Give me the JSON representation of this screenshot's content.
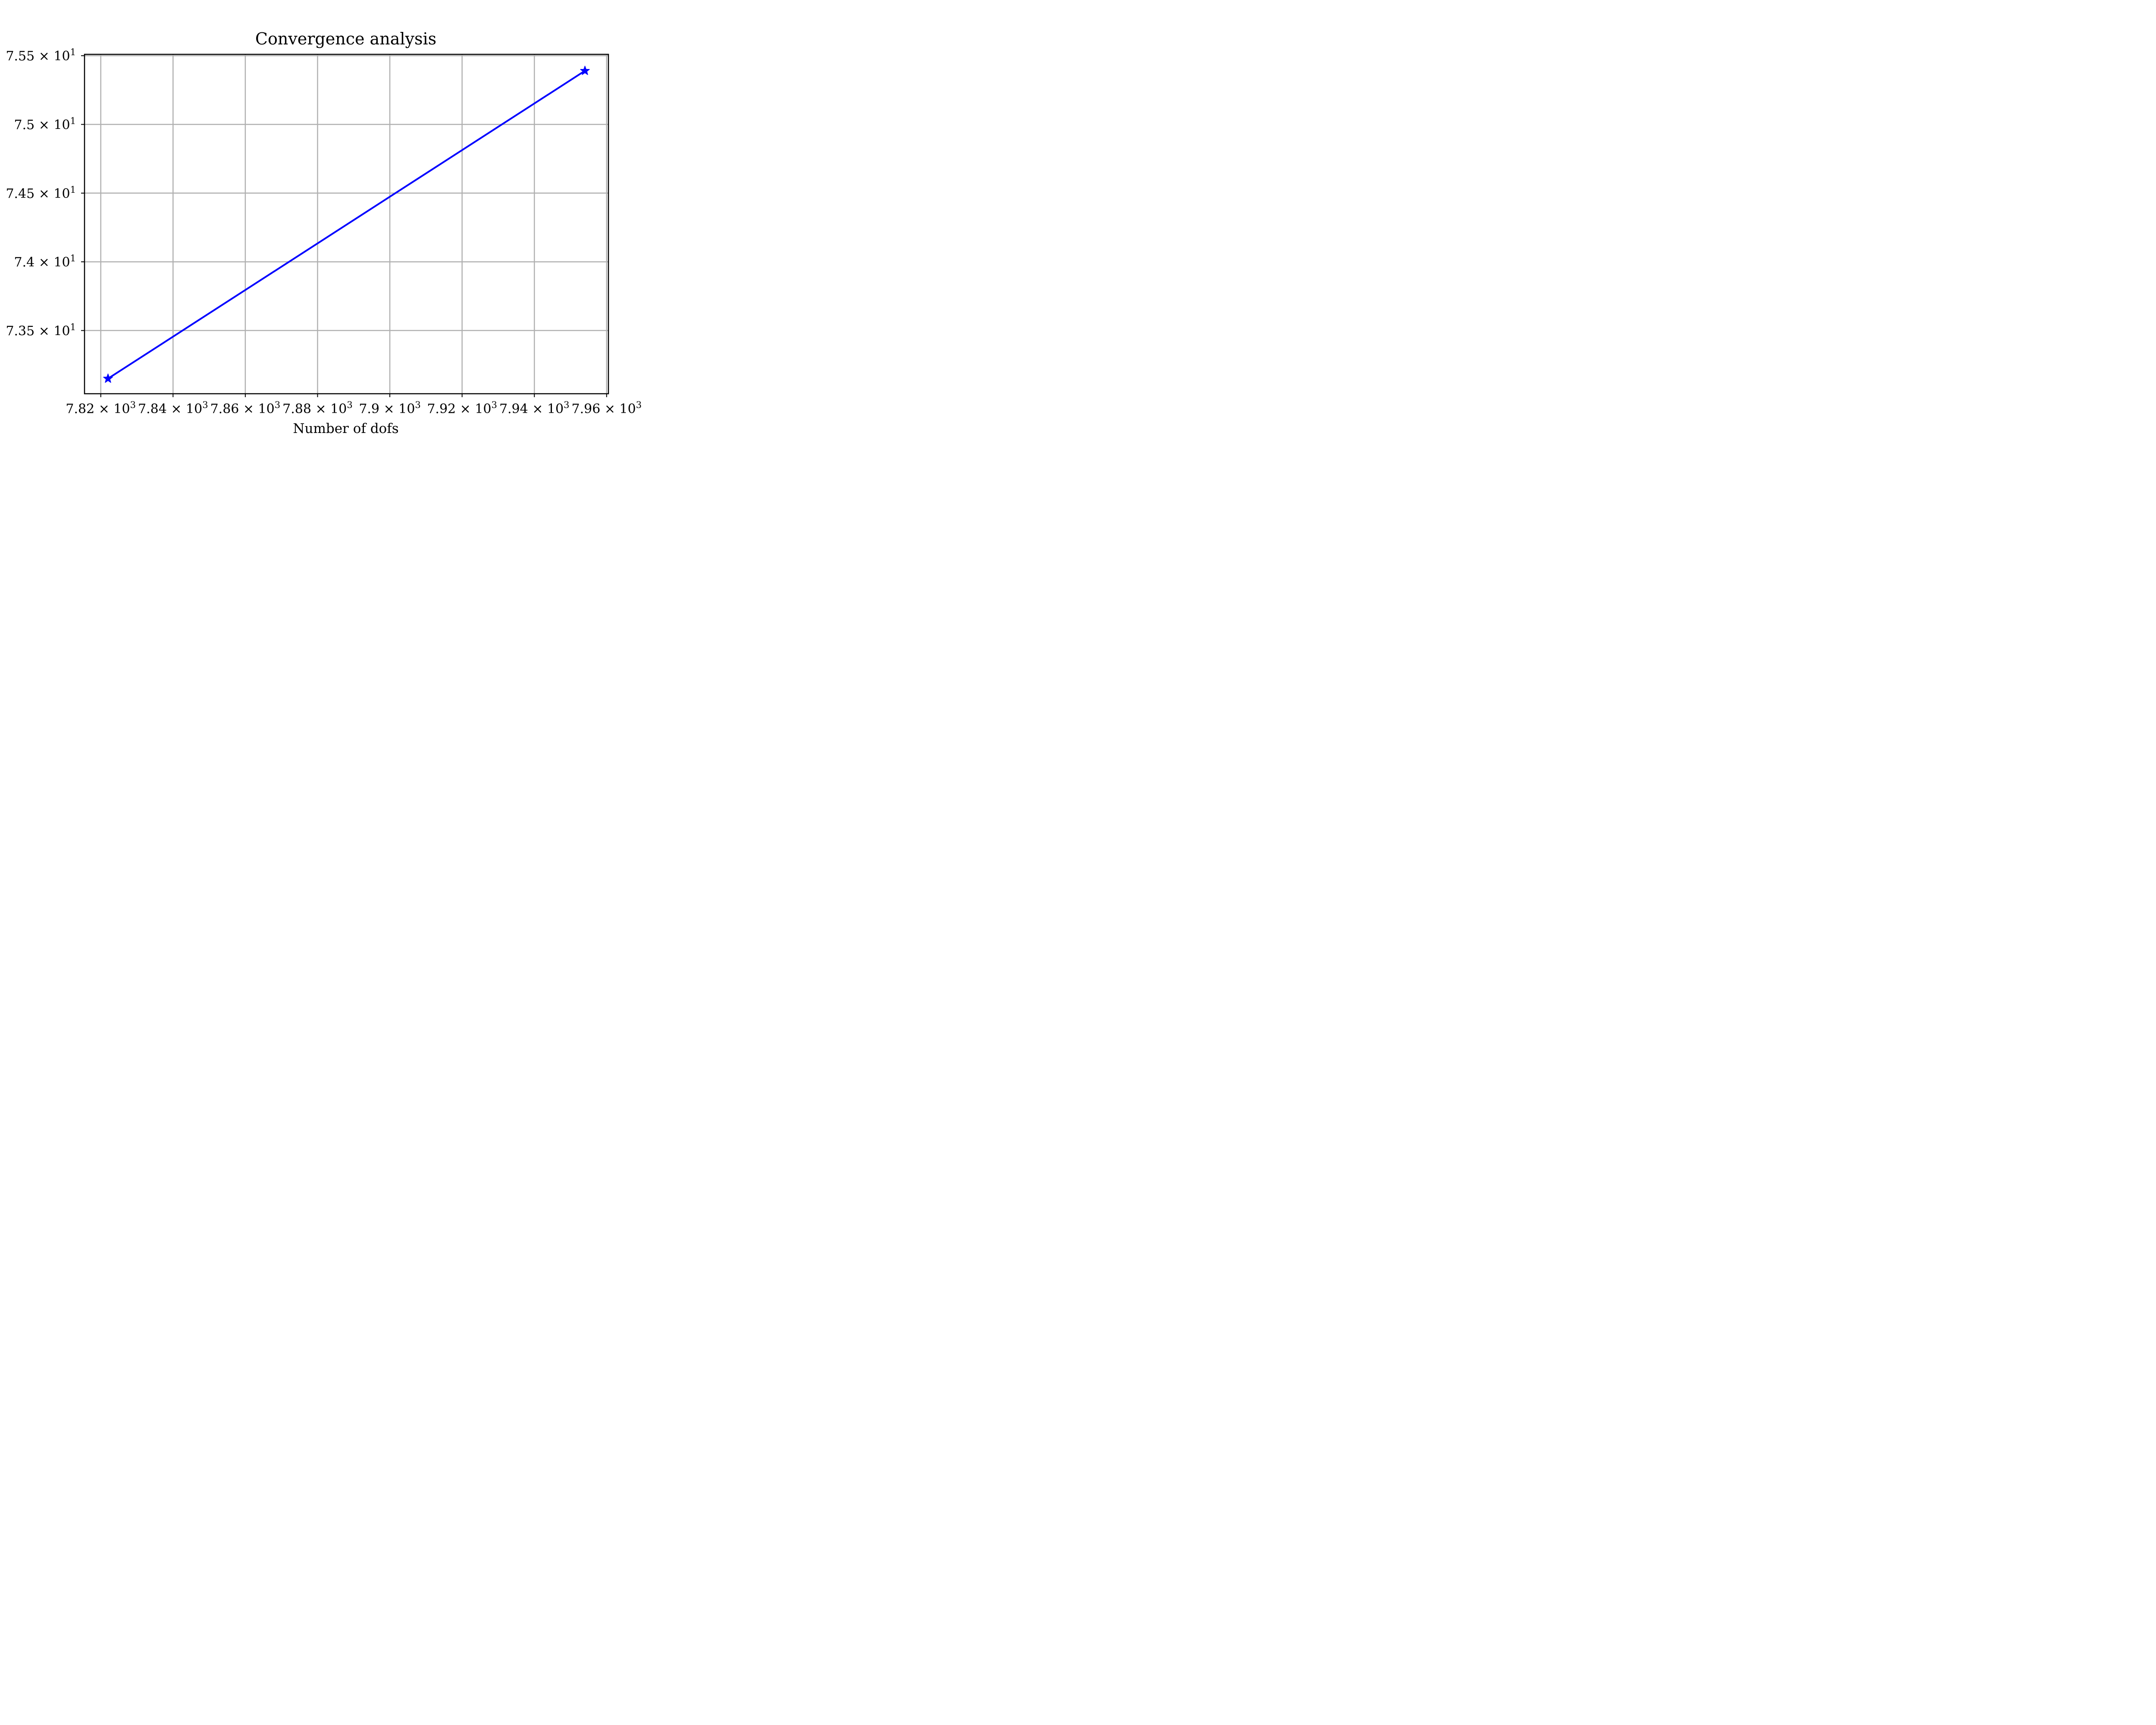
{
  "chart_data": {
    "type": "line",
    "title": "Convergence analysis",
    "xlabel": "Number of dofs",
    "ylabel": "",
    "x_ticks": [
      7820,
      7840,
      7860,
      7880,
      7900,
      7920,
      7940,
      7960
    ],
    "x_tick_labels": [
      {
        "base": "7.82",
        "exp": "3"
      },
      {
        "base": "7.84",
        "exp": "3"
      },
      {
        "base": "7.86",
        "exp": "3"
      },
      {
        "base": "7.88",
        "exp": "3"
      },
      {
        "base": "7.9",
        "exp": "3"
      },
      {
        "base": "7.92",
        "exp": "3"
      },
      {
        "base": "7.94",
        "exp": "3"
      },
      {
        "base": "7.96",
        "exp": "3"
      }
    ],
    "y_ticks": [
      73.5,
      74.0,
      74.5,
      75.0,
      75.5
    ],
    "y_tick_labels": [
      {
        "base": "7.35",
        "exp": "1"
      },
      {
        "base": "7.4",
        "exp": "1"
      },
      {
        "base": "7.45",
        "exp": "1"
      },
      {
        "base": "7.5",
        "exp": "1"
      },
      {
        "base": "7.55",
        "exp": "1"
      }
    ],
    "xlim": [
      7815.5,
      7960.5
    ],
    "ylim": [
      73.04,
      75.51
    ],
    "grid": true,
    "series": [
      {
        "x": [
          7822,
          7954
        ],
        "y": [
          73.15,
          75.39
        ],
        "color": "#0000ff",
        "marker": "star"
      }
    ]
  }
}
